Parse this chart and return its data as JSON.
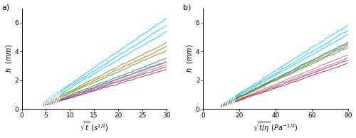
{
  "panel_a": {
    "xlabel": "$\\sqrt{t}$ $(s^{1/2})$",
    "ylabel": "$h$  $(mm)$",
    "label": "a)",
    "xlim": [
      0,
      30
    ],
    "ylim": [
      0,
      7
    ],
    "xticks": [
      0,
      5,
      10,
      15,
      20,
      25,
      30
    ],
    "yticks": [
      0,
      2,
      4,
      6
    ],
    "series": [
      {
        "color": "#00bfff",
        "slope": 0.228,
        "intercept": -0.55,
        "noise_scale": 0.08,
        "x_start": 4.5,
        "marker_end": 8
      },
      {
        "color": "#00bfff",
        "slope": 0.21,
        "intercept": -0.5,
        "noise_scale": 0.08,
        "x_start": 4.5,
        "marker_end": 8
      },
      {
        "color": "#00bfff",
        "slope": 0.195,
        "intercept": -0.48,
        "noise_scale": 0.07,
        "x_start": 4.5,
        "marker_end": 8
      },
      {
        "color": "#808000",
        "slope": 0.168,
        "intercept": -0.42,
        "noise_scale": 0.07,
        "x_start": 4.5,
        "marker_end": 8
      },
      {
        "color": "#808000",
        "slope": 0.158,
        "intercept": -0.4,
        "noise_scale": 0.07,
        "x_start": 4.5,
        "marker_end": 8
      },
      {
        "color": "#808000",
        "slope": 0.148,
        "intercept": -0.38,
        "noise_scale": 0.06,
        "x_start": 4.5,
        "marker_end": 8
      },
      {
        "color": "#008080",
        "slope": 0.128,
        "intercept": -0.32,
        "noise_scale": 0.06,
        "x_start": 4.5,
        "marker_end": 8
      },
      {
        "color": "#008080",
        "slope": 0.12,
        "intercept": -0.3,
        "noise_scale": 0.06,
        "x_start": 4.5,
        "marker_end": 8
      },
      {
        "color": "#cd5c8a",
        "slope": 0.118,
        "intercept": -0.3,
        "noise_scale": 0.06,
        "x_start": 4.5,
        "marker_end": 8
      },
      {
        "color": "#cd5c8a",
        "slope": 0.112,
        "intercept": -0.28,
        "noise_scale": 0.06,
        "x_start": 4.5,
        "marker_end": 8
      },
      {
        "color": "#8b2252",
        "slope": 0.107,
        "intercept": -0.27,
        "noise_scale": 0.055,
        "x_start": 4.5,
        "marker_end": 8
      },
      {
        "color": "#8b2252",
        "slope": 0.1,
        "intercept": -0.25,
        "noise_scale": 0.055,
        "x_start": 4.5,
        "marker_end": 8
      }
    ]
  },
  "panel_b": {
    "xlabel": "$\\sqrt{t/\\eta}$ $(Pa^{-1/2})$",
    "ylabel": "$h$  $(mm)$",
    "label": "b)",
    "xlim": [
      0,
      80
    ],
    "ylim": [
      0,
      7
    ],
    "xticks": [
      0,
      20,
      40,
      60,
      80
    ],
    "yticks": [
      0,
      2,
      4,
      6
    ],
    "series": [
      {
        "color": "#00bfff",
        "slope": 0.079,
        "intercept": -0.5,
        "noise_scale": 0.08,
        "x_start": 10,
        "marker_end": 18
      },
      {
        "color": "#00bfff",
        "slope": 0.074,
        "intercept": -0.47,
        "noise_scale": 0.08,
        "x_start": 10,
        "marker_end": 18
      },
      {
        "color": "#00bfff",
        "slope": 0.07,
        "intercept": -0.44,
        "noise_scale": 0.07,
        "x_start": 10,
        "marker_end": 18
      },
      {
        "color": "#008080",
        "slope": 0.063,
        "intercept": -0.4,
        "noise_scale": 0.07,
        "x_start": 10,
        "marker_end": 18
      },
      {
        "color": "#008080",
        "slope": 0.06,
        "intercept": -0.38,
        "noise_scale": 0.07,
        "x_start": 10,
        "marker_end": 18
      },
      {
        "color": "#808000",
        "slope": 0.062,
        "intercept": -0.39,
        "noise_scale": 0.07,
        "x_start": 10,
        "marker_end": 18
      },
      {
        "color": "#808000",
        "slope": 0.058,
        "intercept": -0.36,
        "noise_scale": 0.065,
        "x_start": 10,
        "marker_end": 18
      },
      {
        "color": "#cd5c8a",
        "slope": 0.051,
        "intercept": -0.32,
        "noise_scale": 0.065,
        "x_start": 10,
        "marker_end": 18
      },
      {
        "color": "#cd5c8a",
        "slope": 0.048,
        "intercept": -0.3,
        "noise_scale": 0.06,
        "x_start": 10,
        "marker_end": 18
      },
      {
        "color": "#8b2252",
        "slope": 0.046,
        "intercept": -0.29,
        "noise_scale": 0.06,
        "x_start": 10,
        "marker_end": 18
      },
      {
        "color": "#8b2252",
        "slope": 0.043,
        "intercept": -0.27,
        "noise_scale": 0.055,
        "x_start": 10,
        "marker_end": 18
      }
    ]
  },
  "fig_width": 5.0,
  "fig_height": 1.94,
  "dpi": 100,
  "linewidth": 0.7,
  "seed": 42
}
